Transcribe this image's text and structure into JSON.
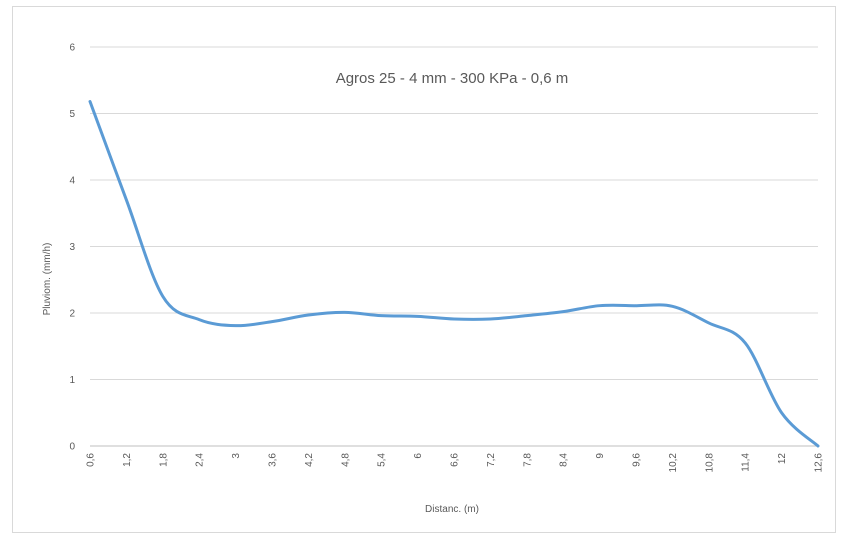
{
  "chart_data": {
    "type": "line",
    "title": "Agros 25 - 4 mm - 300 KPa - 0,6 m",
    "xlabel": "Distanc. (m)",
    "ylabel": "Pluviom. (mm/h)",
    "categories": [
      "0,6",
      "1,2",
      "1,8",
      "2,4",
      "3",
      "3,6",
      "4,2",
      "4,8",
      "5,4",
      "6",
      "6,6",
      "7,2",
      "7,8",
      "8,4",
      "9",
      "9,6",
      "10,2",
      "10,8",
      "11,4",
      "12",
      "12,6"
    ],
    "series": [
      {
        "values": [
          5.18,
          3.7,
          2.25,
          1.9,
          1.81,
          1.87,
          1.97,
          2.01,
          1.96,
          1.95,
          1.91,
          1.91,
          1.96,
          2.02,
          2.11,
          2.11,
          2.1,
          1.85,
          1.55,
          0.5,
          0.0
        ],
        "color": "#5b9bd5"
      }
    ],
    "y_ticks": [
      "0",
      "1",
      "2",
      "3",
      "4",
      "5",
      "6"
    ],
    "ylim": [
      0,
      6
    ],
    "grid": true,
    "legend": "none"
  }
}
